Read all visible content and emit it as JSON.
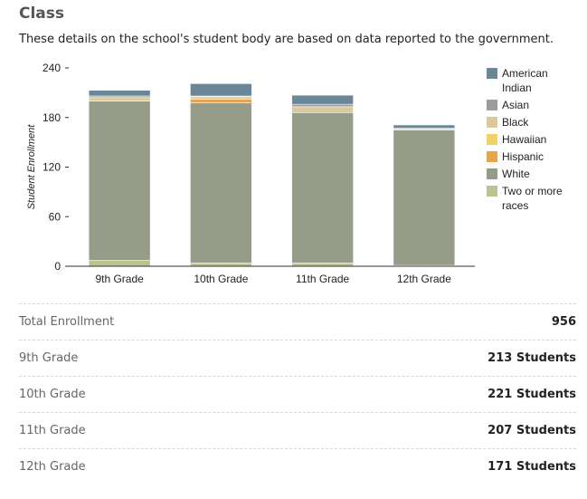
{
  "header": {
    "title": "Class",
    "subtitle": "These details on the school's student body are based on data reported to the government."
  },
  "chart_data": {
    "type": "bar",
    "stacked": true,
    "categories": [
      "9th Grade",
      "10th Grade",
      "11th Grade",
      "12th Grade"
    ],
    "ylabel": "Student Enrollment",
    "ylim": [
      0,
      240
    ],
    "yticks": [
      0,
      60,
      120,
      180,
      240
    ],
    "grid": false,
    "legend_position": "right",
    "series": [
      {
        "name": "Two or more races",
        "legend_lines": [
          "Two or more",
          "races"
        ],
        "color": "#b9c48f",
        "values": [
          7,
          4,
          4,
          1
        ]
      },
      {
        "name": "White",
        "legend_lines": [
          "White"
        ],
        "color": "#959c88",
        "values": [
          193,
          194,
          182,
          164
        ]
      },
      {
        "name": "Hispanic",
        "legend_lines": [
          "Hispanic"
        ],
        "color": "#e8a44c",
        "values": [
          0,
          4,
          0,
          0
        ]
      },
      {
        "name": "Hawaiian",
        "legend_lines": [
          "Hawaiian"
        ],
        "color": "#f0d368",
        "values": [
          0,
          0,
          0,
          0
        ]
      },
      {
        "name": "Black",
        "legend_lines": [
          "Black"
        ],
        "color": "#dcc99a",
        "values": [
          4,
          3,
          7,
          1
        ]
      },
      {
        "name": "Asian",
        "legend_lines": [
          "Asian"
        ],
        "color": "#9c9c9c",
        "values": [
          2,
          1,
          3,
          1
        ]
      },
      {
        "name": "American Indian",
        "legend_lines": [
          "American",
          "Indian"
        ],
        "color": "#6a8797",
        "values": [
          7,
          15,
          11,
          4
        ]
      }
    ],
    "legend_order": [
      "American Indian",
      "Asian",
      "Black",
      "Hawaiian",
      "Hispanic",
      "White",
      "Two or more races"
    ]
  },
  "summary": {
    "total_label": "Total Enrollment",
    "total_value": "956",
    "rows": [
      {
        "label": "9th Grade",
        "value": "213 Students"
      },
      {
        "label": "10th Grade",
        "value": "221 Students"
      },
      {
        "label": "11th Grade",
        "value": "207 Students"
      },
      {
        "label": "12th Grade",
        "value": "171 Students"
      }
    ]
  }
}
